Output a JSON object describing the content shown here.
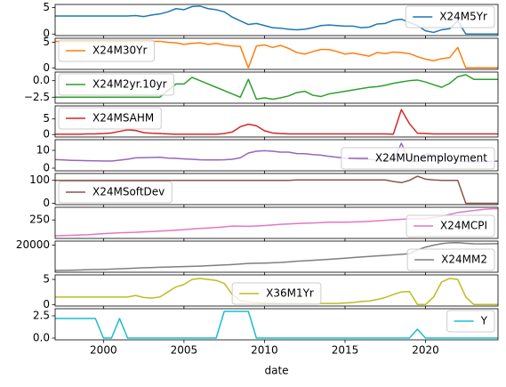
{
  "chart_data": {
    "type": "line",
    "xlabel": "date",
    "x": [
      1997,
      1997.5,
      1998,
      1998.5,
      1999,
      1999.5,
      2000,
      2000.5,
      2001,
      2001.5,
      2002,
      2002.5,
      2003,
      2003.5,
      2004,
      2004.5,
      2005,
      2005.5,
      2006,
      2006.5,
      2007,
      2007.5,
      2008,
      2008.5,
      2009,
      2009.5,
      2010,
      2010.5,
      2011,
      2011.5,
      2012,
      2012.5,
      2013,
      2013.5,
      2014,
      2014.5,
      2015,
      2015.5,
      2016,
      2016.5,
      2017,
      2017.5,
      2018,
      2018.5,
      2019,
      2019.5,
      2020,
      2020.5,
      2021,
      2021.5,
      2022,
      2022.5,
      2023,
      2023.5,
      2024,
      2024.5
    ],
    "xlim": [
      1997,
      2024.5
    ],
    "xticks": [
      2000,
      2005,
      2010,
      2015,
      2020
    ],
    "panels": [
      {
        "series": [
          {
            "name": "X24M5Yr",
            "color": "#1f77b4",
            "values": [
              3.4,
              3.4,
              3.4,
              3.4,
              3.4,
              3.4,
              3.4,
              3.4,
              3.4,
              3.4,
              3.5,
              3.3,
              3.6,
              3.8,
              4.2,
              4.8,
              4.6,
              5.2,
              5.3,
              4.8,
              4.6,
              4.2,
              3.2,
              2.5,
              1.8,
              2.0,
              1.6,
              1.2,
              1.1,
              0.9,
              0.8,
              0.9,
              1.2,
              1.6,
              1.7,
              1.6,
              1.5,
              1.5,
              1.2,
              1.3,
              1.9,
              2.0,
              2.6,
              2.8,
              2.2,
              1.6,
              0.6,
              0.3,
              0.8,
              1.0,
              2.5,
              0,
              0,
              0,
              0,
              0
            ]
          }
        ],
        "ylim": [
          -0.3,
          5.6
        ],
        "yticks": [
          0,
          5
        ],
        "legend": "upper right"
      },
      {
        "series": [
          {
            "name": "X24M30Yr",
            "color": "#ff7f0e",
            "values": [
              5.2,
              5.2,
              5.2,
              5.2,
              5.2,
              5.2,
              5.2,
              5.2,
              5.2,
              5.2,
              5.2,
              5.2,
              5.2,
              5.2,
              5.0,
              4.9,
              4.6,
              4.8,
              4.9,
              4.6,
              4.8,
              4.5,
              4.3,
              4.2,
              0,
              4.3,
              4.5,
              4.0,
              4.4,
              3.8,
              3.0,
              2.7,
              3.2,
              3.6,
              3.6,
              3.2,
              2.7,
              2.9,
              2.6,
              2.3,
              3.0,
              2.8,
              3.1,
              3.0,
              2.8,
              2.2,
              1.7,
              1.4,
              1.8,
              2.0,
              4.0,
              0,
              0,
              0,
              0,
              0
            ]
          }
        ],
        "ylim": [
          -0.3,
          5.8
        ],
        "yticks": [
          0,
          5
        ],
        "legend": "upper left"
      },
      {
        "series": [
          {
            "name": "X24M2yr.10yr",
            "color": "#2ca02c",
            "values": [
              -2.5,
              -2.5,
              -2.5,
              -2.5,
              -2.5,
              -2.5,
              -2.5,
              -2.5,
              -2.5,
              -2.5,
              -2.5,
              -2.5,
              -2.5,
              -2.5,
              -1.5,
              -0.5,
              -0.5,
              0.5,
              0,
              -0.5,
              -1.0,
              -1.5,
              -2.0,
              -2.5,
              0.2,
              -2.8,
              -2.6,
              -2.8,
              -2.6,
              -2.3,
              -1.8,
              -1.6,
              -2.2,
              -2.4,
              -2.0,
              -1.8,
              -1.6,
              -1.4,
              -1.2,
              -1.0,
              -0.9,
              -0.7,
              -0.4,
              -0.2,
              0.0,
              0.1,
              -0.2,
              -0.6,
              -1.0,
              -0.4,
              0.6,
              0.9,
              0.2,
              0.2,
              0.2,
              0.2
            ]
          }
        ],
        "ylim": [
          -3.4,
          1.3
        ],
        "yticks": [
          {
            "value": -2.5,
            "label": "−2.5"
          },
          {
            "value": 0,
            "label": "0.0"
          }
        ],
        "legend": "upper left"
      },
      {
        "series": [
          {
            "name": "X24MSAHM",
            "color": "#d62728",
            "values": [
              0.1,
              0.1,
              0.1,
              0.1,
              0.2,
              0.2,
              0.3,
              0.5,
              1.0,
              1.5,
              1.3,
              0.6,
              0.4,
              0.3,
              0.2,
              0.1,
              0.1,
              0.1,
              0.1,
              0.1,
              0.1,
              0.3,
              0.8,
              2.5,
              3.3,
              2.8,
              1.2,
              0.5,
              0.3,
              0.2,
              0.2,
              0.2,
              0.2,
              0.2,
              0.2,
              0.2,
              0.2,
              0.2,
              0.2,
              0.2,
              0.2,
              0.2,
              0.1,
              8.0,
              3.5,
              0.4,
              0.3,
              0.2,
              0.2,
              0.2,
              0.2,
              0.2,
              0.2,
              0.2,
              0.2,
              0.2
            ]
          }
        ],
        "ylim": [
          -0.8,
          9.2
        ],
        "yticks": [
          0,
          5
        ],
        "legend": "upper left"
      },
      {
        "series": [
          {
            "name": "X24MUnemployment",
            "color": "#9467bd",
            "values": [
              4.8,
              4.6,
              4.4,
              4.3,
              4.2,
              4.1,
              4.0,
              4.0,
              4.5,
              5.0,
              5.8,
              5.9,
              6.0,
              6.1,
              5.6,
              5.5,
              5.2,
              5.0,
              4.7,
              4.6,
              4.6,
              4.7,
              5.0,
              5.8,
              8.5,
              9.5,
              9.8,
              9.5,
              9.0,
              9.0,
              8.2,
              8.1,
              7.6,
              7.3,
              6.6,
              6.1,
              5.6,
              5.3,
              4.9,
              4.9,
              4.6,
              4.3,
              4.1,
              14.0,
              3.8,
              3.7,
              8.0,
              7.5,
              6.2,
              5.6,
              4.0,
              3.6,
              3.5,
              3.6,
              3.7,
              4.0
            ]
          }
        ],
        "ylim": [
          -1.5,
          16
        ],
        "yticks": [
          0,
          10
        ],
        "legend": "lower right"
      },
      {
        "series": [
          {
            "name": "X24MSoftDev",
            "color": "#8c564b",
            "values": [
              100,
              100,
              100,
              100,
              100,
              100,
              100,
              100,
              100,
              100,
              100,
              100,
              100,
              100,
              100,
              100,
              100,
              100,
              100,
              100,
              100,
              100,
              100,
              100,
              100,
              100,
              100,
              100,
              100,
              100,
              102,
              102,
              102,
              102,
              102,
              102,
              102,
              102,
              102,
              102,
              102,
              102,
              95,
              90,
              100,
              118,
              105,
              102,
              100,
              100,
              100,
              0,
              0,
              0,
              0,
              0
            ]
          }
        ],
        "ylim": [
          -6,
          130
        ],
        "yticks": [
          0,
          100
        ],
        "legend": "lower left"
      },
      {
        "series": [
          {
            "name": "X24MCPI",
            "color": "#e377c2",
            "values": [
              160,
              161.5,
              163,
              164.5,
              166,
              169,
              172,
              174.5,
              177,
              178.5,
              180,
              182,
              184,
              186.5,
              189,
              192,
              195,
              198.5,
              202,
              204.5,
              207,
              211,
              215,
              214.5,
              214,
              216,
              218,
              221.5,
              225,
              227.5,
              230,
              231.5,
              233,
              235,
              237,
              237,
              237,
              238.5,
              240,
              242.5,
              245,
              248,
              251,
              253.5,
              256,
              257,
              258,
              264.5,
              271,
              281.5,
              292,
              298,
              304,
              308.5,
              313,
              314
            ]
          }
        ],
        "ylim": [
          145,
          322
        ],
        "yticks": [
          250
        ],
        "legend": "lower right"
      },
      {
        "series": [
          {
            "name": "X24MM2",
            "color": "#7f7f7f",
            "values": [
              3900,
              4000,
              4100,
              4250,
              4400,
              4500,
              4600,
              4800,
              5000,
              5200,
              5400,
              5600,
              5800,
              5950,
              6100,
              6250,
              6400,
              6550,
              6700,
              6950,
              7200,
              7450,
              7700,
              8050,
              8400,
              8500,
              8600,
              8800,
              9000,
              9400,
              9800,
              10100,
              10400,
              10700,
              11000,
              11350,
              11700,
              12100,
              12500,
              12850,
              13200,
              13500,
              13800,
              14200,
              14600,
              17000,
              18800,
              20000,
              21000,
              21500,
              21600,
              21200,
              20900,
              20800,
              20900,
              21000
            ]
          }
        ],
        "ylim": [
          2800,
          22600
        ],
        "yticks": [
          20000
        ],
        "legend": "lower right"
      },
      {
        "series": [
          {
            "name": "X36M1Yr",
            "color": "#bcbd22",
            "values": [
              1.5,
              1.5,
              1.5,
              1.5,
              1.5,
              1.5,
              1.5,
              1.5,
              1.5,
              1.5,
              1.8,
              1.4,
              1.3,
              1.5,
              2.5,
              3.5,
              4.0,
              5.0,
              5.2,
              5.0,
              4.8,
              4.2,
              2.0,
              0.8,
              0.5,
              0.4,
              0.3,
              0.3,
              0.2,
              0.2,
              0.2,
              0.2,
              0.2,
              0.2,
              0.2,
              0.2,
              0.3,
              0.4,
              0.6,
              0.7,
              1.0,
              1.4,
              2.0,
              2.5,
              2.6,
              0.0,
              0.0,
              1.5,
              4.5,
              5.2,
              5.0,
              1.5,
              0,
              0,
              0,
              0
            ]
          }
        ],
        "ylim": [
          -0.3,
          5.9
        ],
        "yticks": [
          0,
          5
        ],
        "legend": "lower center"
      },
      {
        "series": [
          {
            "name": "Y",
            "color": "#17becf",
            "values": [
              2.2,
              2.2,
              2.2,
              2.2,
              2.2,
              2.2,
              0,
              0,
              2.2,
              0,
              0,
              0,
              0,
              0,
              0,
              0,
              0,
              0,
              0,
              0,
              0,
              3.0,
              3.0,
              3.0,
              3.0,
              0,
              0,
              0,
              0,
              0,
              0,
              0,
              0,
              0,
              0,
              0,
              0,
              0,
              0,
              0,
              0,
              0,
              0,
              0,
              0,
              1.0,
              0,
              0,
              0,
              0,
              0,
              0,
              0,
              0,
              0,
              0
            ]
          }
        ],
        "ylim": [
          -0.2,
          3.3
        ],
        "yticks": [
          {
            "value": 0,
            "label": "0.0"
          },
          2.5
        ],
        "legend": "upper right"
      }
    ]
  }
}
